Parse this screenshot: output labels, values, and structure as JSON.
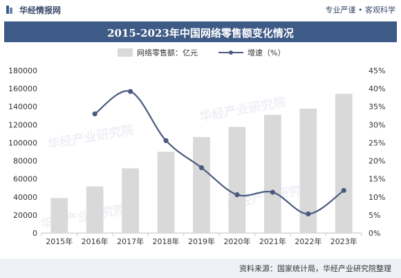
{
  "header": {
    "brand": "华经情报网",
    "slogan": "专业严谨 • 客观科学"
  },
  "title": "2015-2023年中国网络零售额变化情况",
  "footer": {
    "source": "资料来源：国家统计局，华经产业研究院整理"
  },
  "watermark": "华经产业研究院",
  "colors": {
    "bar": "#d9d9d9",
    "line": "#4a5a7e",
    "titlebar": "#3e5a86"
  },
  "chart_data": {
    "type": "bar",
    "categories": [
      "2015年",
      "2016年",
      "2017年",
      "2018年",
      "2019年",
      "2020年",
      "2021年",
      "2022年",
      "2023年"
    ],
    "series": [
      {
        "name": "网络零售额：亿元",
        "type": "bar",
        "axis": "left",
        "values": [
          38773,
          51556,
          71751,
          90065,
          106324,
          117601,
          130884,
          137853,
          154264
        ]
      },
      {
        "name": "增速（%）",
        "type": "line",
        "axis": "right",
        "values": [
          null,
          33.0,
          39.2,
          25.6,
          18.1,
          10.6,
          11.3,
          5.3,
          11.8
        ]
      }
    ],
    "y_left": {
      "min": 0,
      "max": 180000,
      "step": 20000,
      "ticks": [
        "0",
        "20000",
        "40000",
        "60000",
        "80000",
        "100000",
        "120000",
        "140000",
        "160000",
        "180000"
      ]
    },
    "y_right": {
      "min": 0,
      "max": 45,
      "step": 5,
      "ticks": [
        "0%",
        "5%",
        "10%",
        "15%",
        "20%",
        "25%",
        "30%",
        "35%",
        "40%",
        "45%"
      ]
    },
    "grid": false,
    "legend": "top"
  }
}
